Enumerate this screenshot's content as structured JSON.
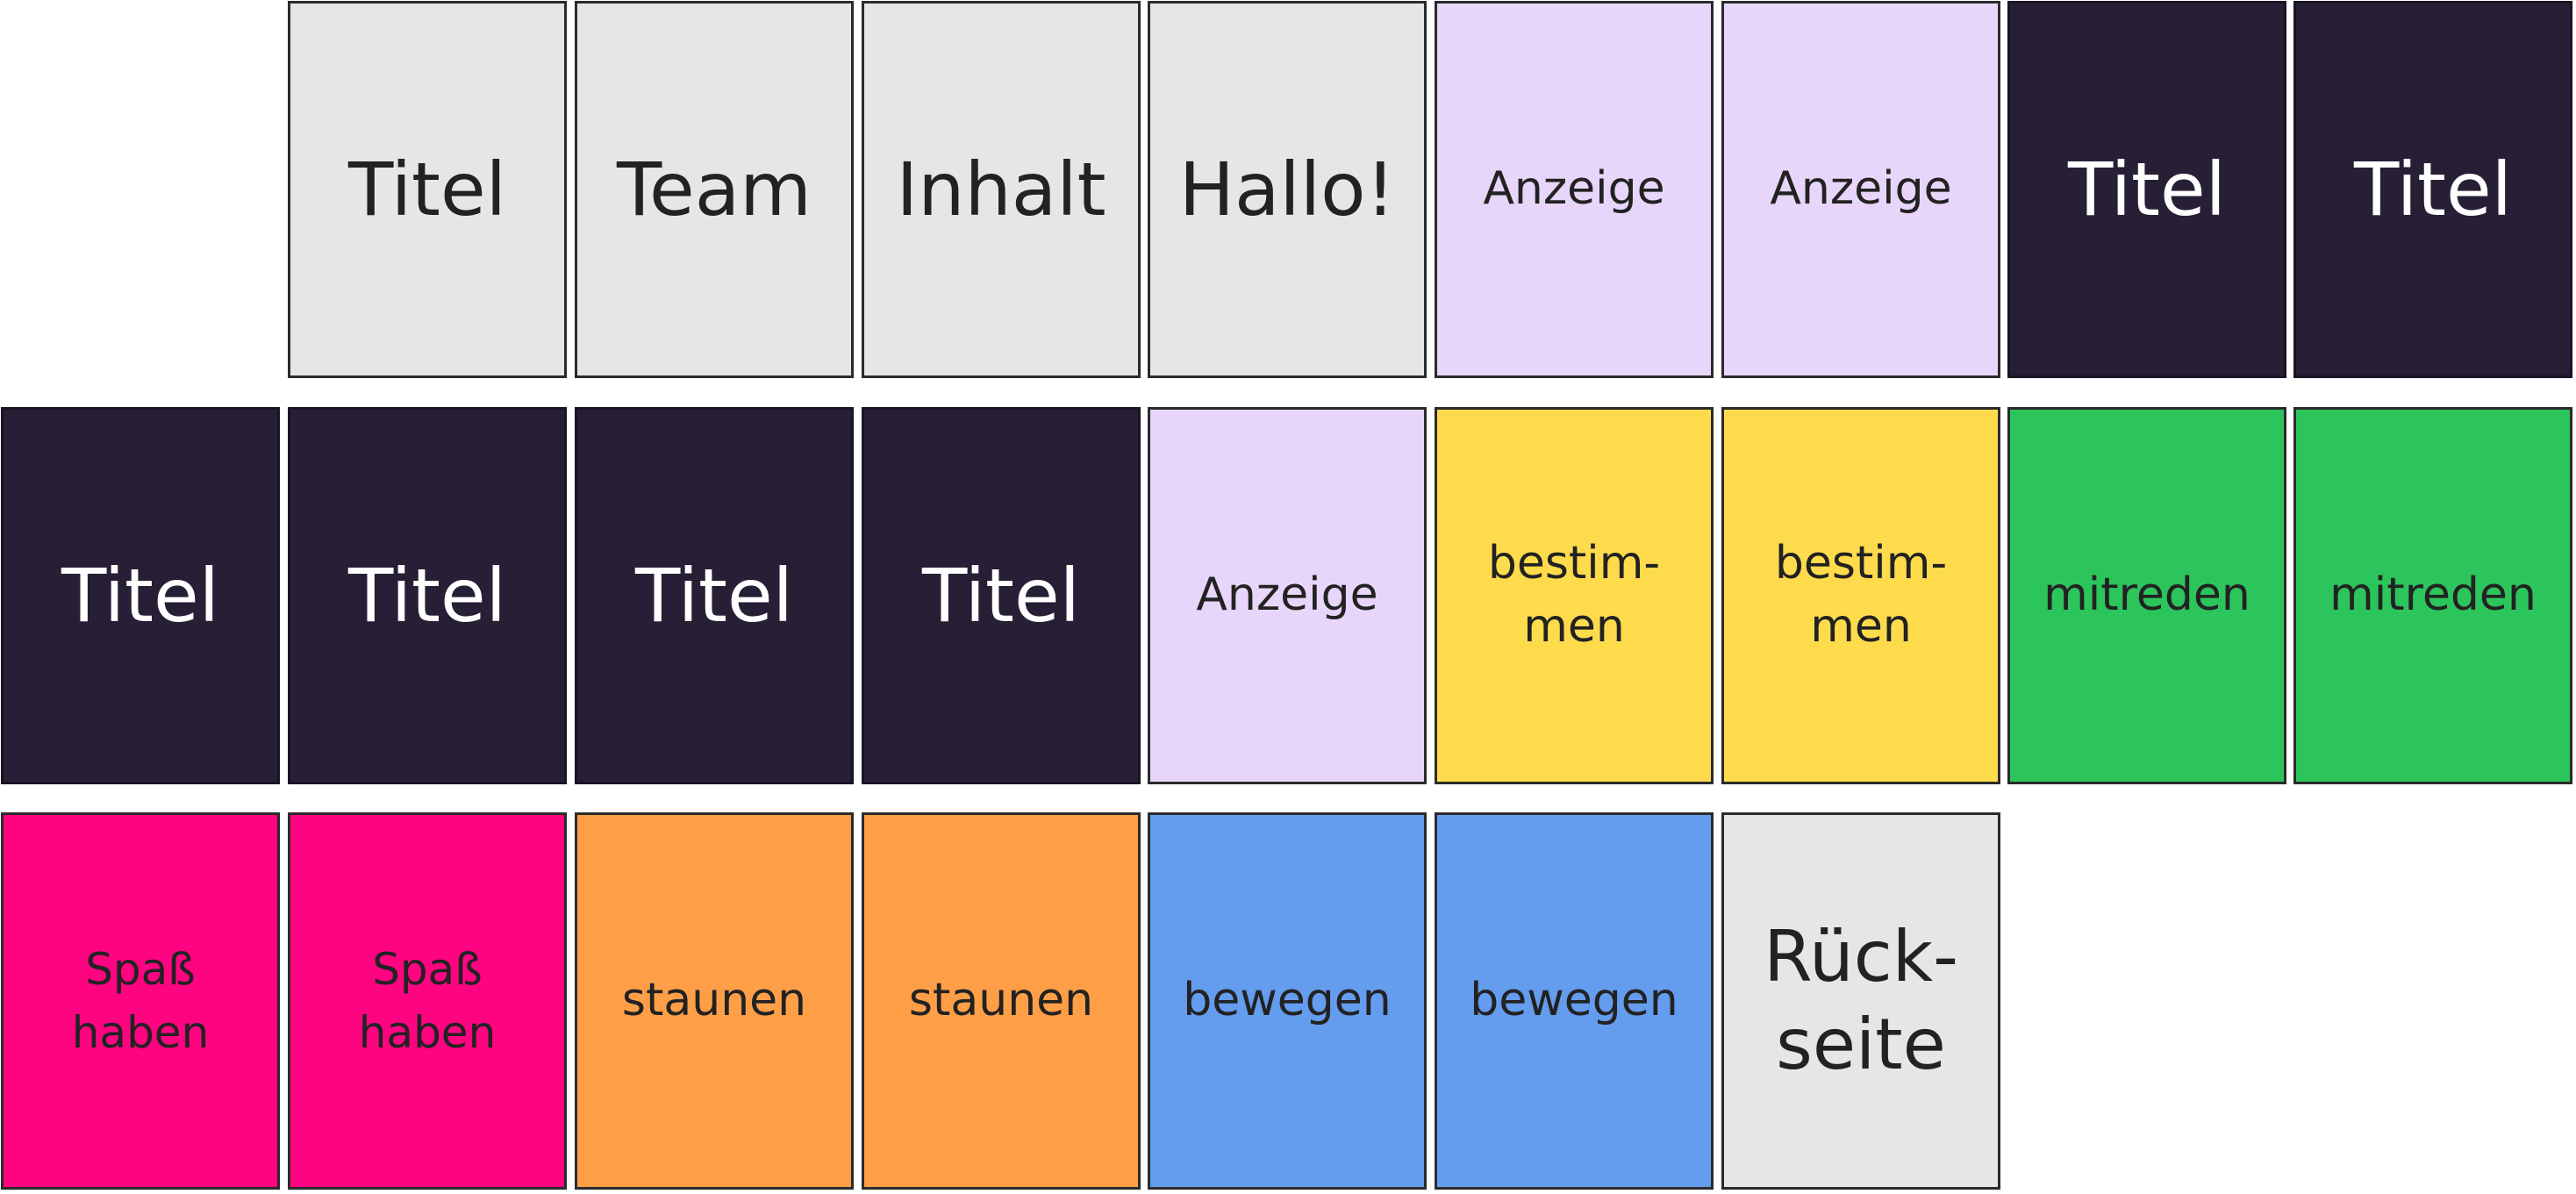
{
  "rows": [
    {
      "cards": [
        {
          "text": "Titel",
          "color": "grey"
        },
        {
          "text": "Team",
          "color": "grey"
        },
        {
          "text": "Inhalt",
          "color": "grey"
        },
        {
          "text": "Hallo!",
          "color": "grey"
        },
        {
          "text": "Anzeige",
          "color": "lavender"
        },
        {
          "text": "Anzeige",
          "color": "lavender"
        },
        {
          "text": "Titel",
          "color": "navy"
        },
        {
          "text": "Titel",
          "color": "navy"
        }
      ]
    },
    {
      "cards": [
        {
          "text": "Titel",
          "color": "navy"
        },
        {
          "text": "Titel",
          "color": "navy"
        },
        {
          "text": "Titel",
          "color": "navy"
        },
        {
          "text": "Titel",
          "color": "navy"
        },
        {
          "text": "Anzeige",
          "color": "lavender"
        },
        {
          "text": "bestim-\nmen",
          "color": "yellow"
        },
        {
          "text": "bestim-\nmen",
          "color": "yellow"
        },
        {
          "text": "mitreden",
          "color": "green"
        },
        {
          "text": "mitreden",
          "color": "green"
        }
      ]
    },
    {
      "cards": [
        {
          "text": "Spaß\nhaben",
          "color": "pink"
        },
        {
          "text": "Spaß\nhaben",
          "color": "pink"
        },
        {
          "text": "staunen",
          "color": "orange"
        },
        {
          "text": "staunen",
          "color": "orange"
        },
        {
          "text": "bewegen",
          "color": "blue"
        },
        {
          "text": "bewegen",
          "color": "blue"
        },
        {
          "text": "Rück-\nseite",
          "color": "grey"
        }
      ]
    }
  ],
  "colors": {
    "grey": "#e6e6e6",
    "lavender": "#e8d6fa",
    "navy": "#271f35",
    "yellow": "#fedb4c",
    "green": "#2cc55c",
    "pink": "#fe0481",
    "orange": "#fe9f48",
    "blue": "#649cee"
  }
}
